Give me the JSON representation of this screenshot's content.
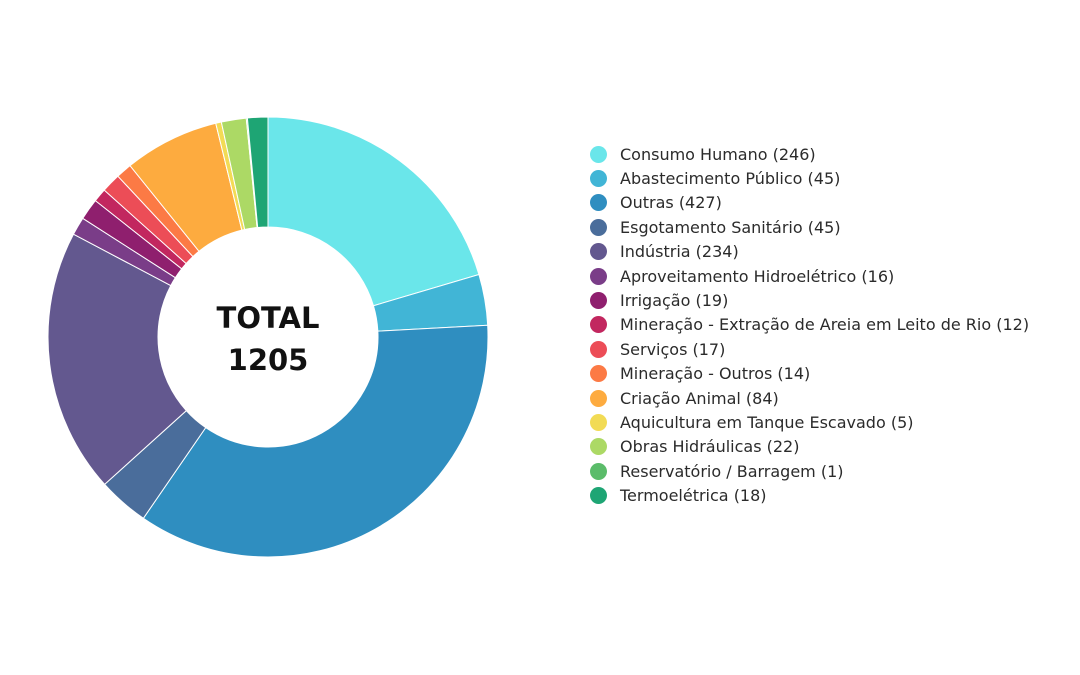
{
  "chart_data": {
    "type": "pie",
    "center_label": {
      "line1": "TOTAL",
      "line2": "1205"
    },
    "legend_position": "right",
    "series": [
      {
        "label": "Consumo Humano (246)",
        "value": 246,
        "color": "#6ae6ea"
      },
      {
        "label": "Abastecimento Público (45)",
        "value": 45,
        "color": "#41b5d6"
      },
      {
        "label": "Outras (427)",
        "value": 427,
        "color": "#2f8ec0"
      },
      {
        "label": "Esgotamento Sanitário (45)",
        "value": 45,
        "color": "#4a6d9b"
      },
      {
        "label": "Indústria (234)",
        "value": 234,
        "color": "#63588f"
      },
      {
        "label": "Aproveitamento Hidroelétrico (16)",
        "value": 16,
        "color": "#7a3d88"
      },
      {
        "label": "Irrigação (19)",
        "value": 19,
        "color": "#8f1f6e"
      },
      {
        "label": "Mineração - Extração de Areia em Leito de Rio (12)",
        "value": 12,
        "color": "#c2275f"
      },
      {
        "label": "Serviços (17)",
        "value": 17,
        "color": "#ec4d57"
      },
      {
        "label": "Mineração - Outros (14)",
        "value": 14,
        "color": "#fc7a45"
      },
      {
        "label": "Criação Animal (84)",
        "value": 84,
        "color": "#fdab3f"
      },
      {
        "label": "Aquicultura em Tanque Escavado (5)",
        "value": 5,
        "color": "#f2db55"
      },
      {
        "label": "Obras Hidráulicas (22)",
        "value": 22,
        "color": "#acd965"
      },
      {
        "label": "Reservatório / Barragem (1)",
        "value": 1,
        "color": "#5bbc6a"
      },
      {
        "label": "Termoelétrica (18)",
        "value": 18,
        "color": "#1ea574"
      }
    ]
  }
}
